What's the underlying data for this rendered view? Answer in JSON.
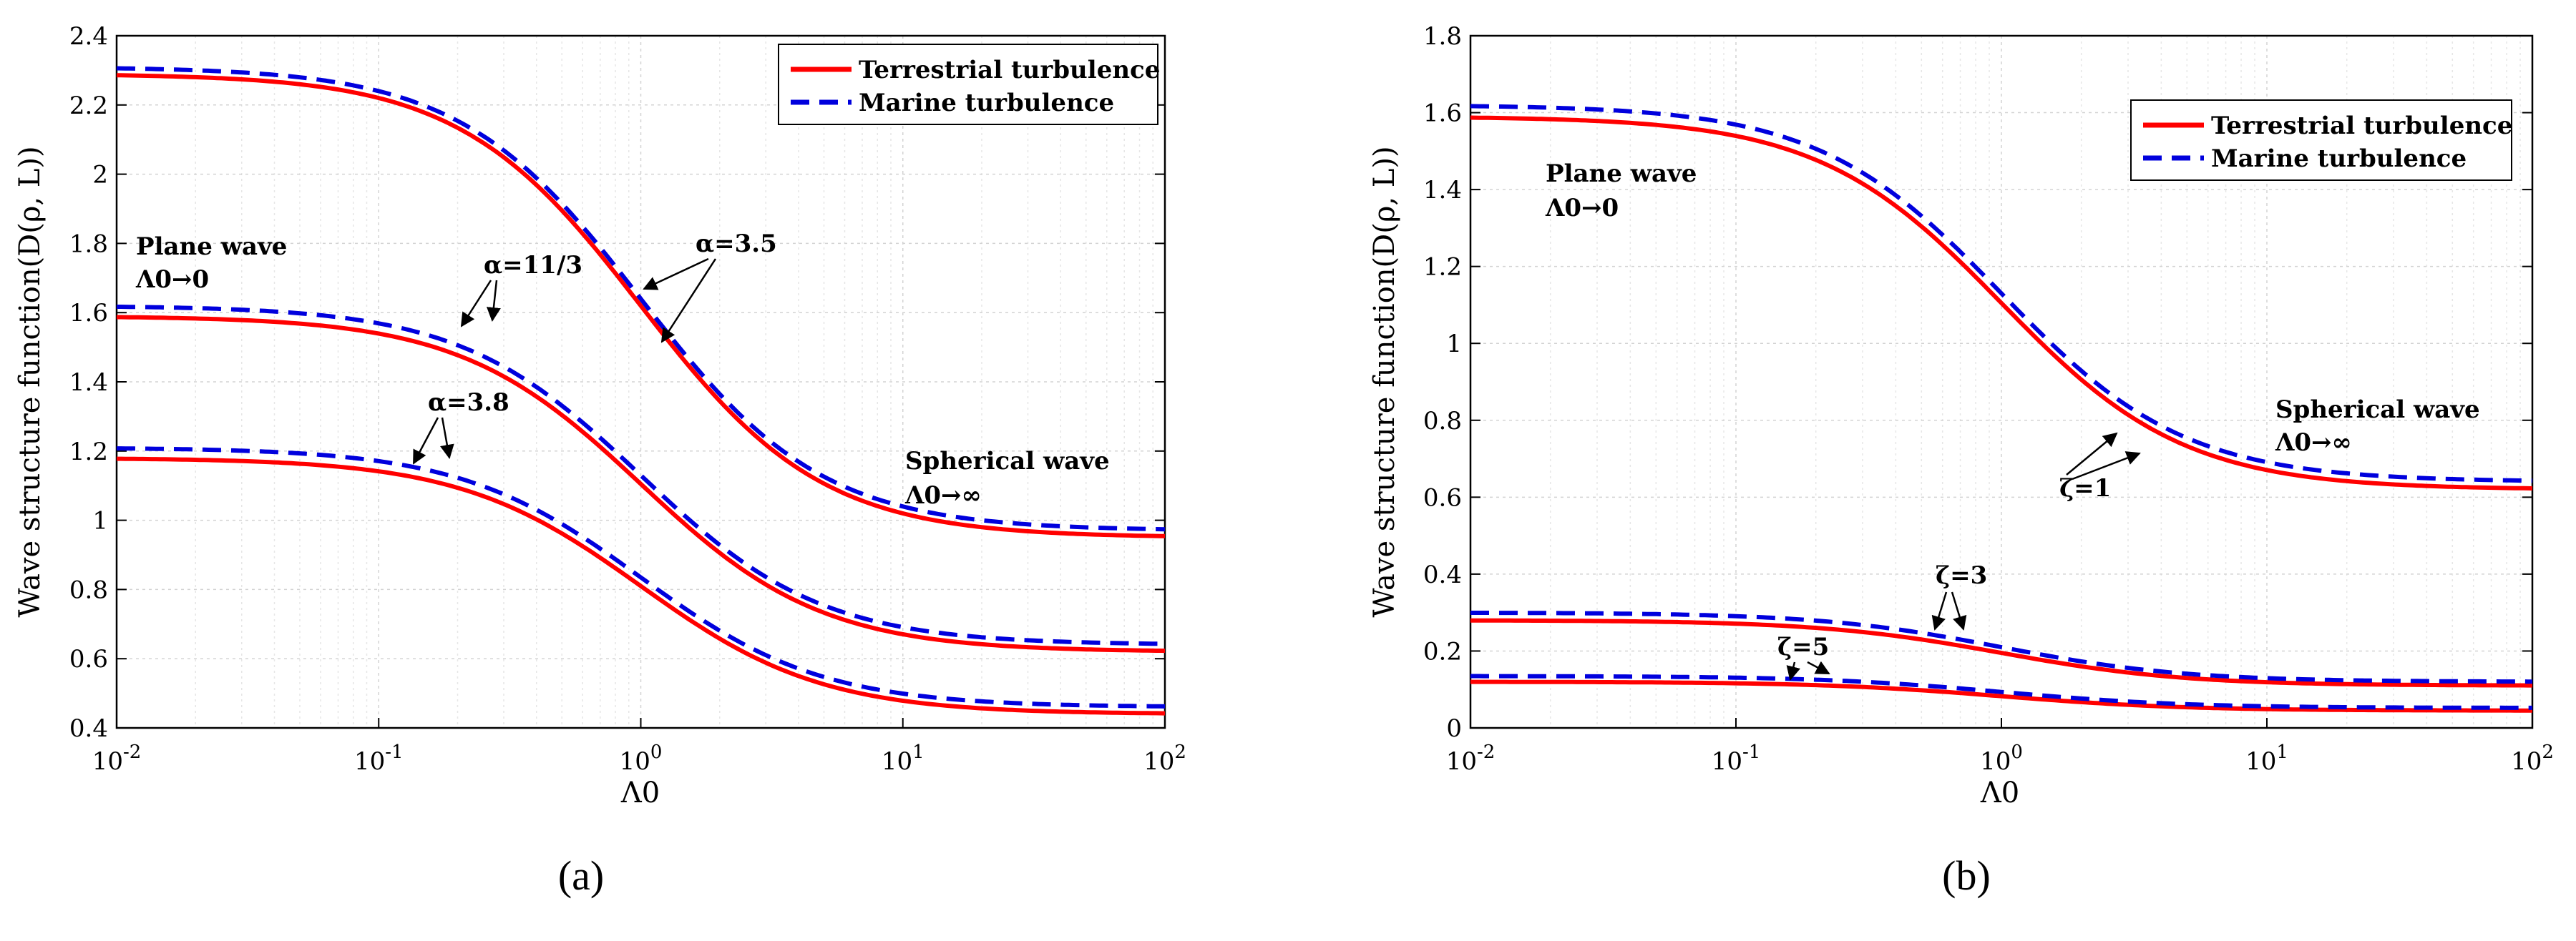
{
  "figure": {
    "series_legend": [
      "Terrestrial turbulence",
      "Marine turbulence"
    ],
    "series_colors": {
      "terrestrial": "#ff0000",
      "marine": "#0000dd"
    }
  },
  "chart_data": [
    {
      "type": "line",
      "panel_label": "(a)",
      "title": "",
      "xlabel": "Λ0",
      "ylabel": "Wave structure function(D(ρ, L))",
      "xscale": "log",
      "xlim": [
        0.01,
        100
      ],
      "ylim": [
        0.4,
        2.4
      ],
      "xticks": [
        0.01,
        0.1,
        1,
        10,
        100
      ],
      "xtick_labels": [
        "10^-2",
        "10^-1",
        "10^0",
        "10^1",
        "10^2"
      ],
      "yticks": [
        0.4,
        0.6,
        0.8,
        1.0,
        1.2,
        1.4,
        1.6,
        1.8,
        2.0,
        2.2,
        2.4
      ],
      "ytick_labels": [
        "0.4",
        "0.6",
        "0.8",
        "1",
        "1.2",
        "1.4",
        "1.6",
        "1.8",
        "2",
        "2.2",
        "2.4"
      ],
      "grid": true,
      "legend_position": "top-right",
      "series": [
        {
          "name": "Terrestrial turbulence",
          "group": "α=3.5",
          "style": "solid",
          "color": "#ff0000",
          "top": 2.29,
          "bottom": 0.95
        },
        {
          "name": "Marine turbulence",
          "group": "α=3.5",
          "style": "dashed",
          "color": "#0000dd",
          "top": 2.31,
          "bottom": 0.97
        },
        {
          "name": "Terrestrial turbulence",
          "group": "α=11/3",
          "style": "solid",
          "color": "#ff0000",
          "top": 1.59,
          "bottom": 0.62
        },
        {
          "name": "Marine turbulence",
          "group": "α=11/3",
          "style": "dashed",
          "color": "#0000dd",
          "top": 1.62,
          "bottom": 0.64
        },
        {
          "name": "Terrestrial turbulence",
          "group": "α=3.8",
          "style": "solid",
          "color": "#ff0000",
          "top": 1.18,
          "bottom": 0.44
        },
        {
          "name": "Marine turbulence",
          "group": "α=3.8",
          "style": "dashed",
          "color": "#0000dd",
          "top": 1.21,
          "bottom": 0.46
        }
      ],
      "annotations": {
        "plane_line1": "Plane wave",
        "plane_line2": "Λ0→0",
        "spherical_line1": "Spherical wave",
        "spherical_line2": "Λ0→∞",
        "group1": "α=3.5",
        "group2": "α=11/3",
        "group3": "α=3.8"
      }
    },
    {
      "type": "line",
      "panel_label": "(b)",
      "title": "",
      "xlabel": "Λ0",
      "ylabel": "Wave structure function(D(ρ, L))",
      "xscale": "log",
      "xlim": [
        0.01,
        100
      ],
      "ylim": [
        0,
        1.8
      ],
      "xticks": [
        0.01,
        0.1,
        1,
        10,
        100
      ],
      "xtick_labels": [
        "10^-2",
        "10^-1",
        "10^0",
        "10^1",
        "10^2"
      ],
      "yticks": [
        0,
        0.2,
        0.4,
        0.6,
        0.8,
        1.0,
        1.2,
        1.4,
        1.6,
        1.8
      ],
      "ytick_labels": [
        "0",
        "0.2",
        "0.4",
        "0.6",
        "0.8",
        "1",
        "1.2",
        "1.4",
        "1.6",
        "1.8"
      ],
      "grid": true,
      "legend_position": "top-right",
      "series": [
        {
          "name": "Terrestrial turbulence",
          "group": "ζ=1",
          "style": "solid",
          "color": "#ff0000",
          "top": 1.59,
          "bottom": 0.62
        },
        {
          "name": "Marine turbulence",
          "group": "ζ=1",
          "style": "dashed",
          "color": "#0000dd",
          "top": 1.62,
          "bottom": 0.64
        },
        {
          "name": "Terrestrial turbulence",
          "group": "ζ=3",
          "style": "solid",
          "color": "#ff0000",
          "top": 0.28,
          "bottom": 0.11
        },
        {
          "name": "Marine turbulence",
          "group": "ζ=3",
          "style": "dashed",
          "color": "#0000dd",
          "top": 0.3,
          "bottom": 0.12
        },
        {
          "name": "Terrestrial turbulence",
          "group": "ζ=5",
          "style": "solid",
          "color": "#ff0000",
          "top": 0.12,
          "bottom": 0.045
        },
        {
          "name": "Marine turbulence",
          "group": "ζ=5",
          "style": "dashed",
          "color": "#0000dd",
          "top": 0.135,
          "bottom": 0.052
        }
      ],
      "annotations": {
        "plane_line1": "Plane wave",
        "plane_line2": "Λ0→0",
        "spherical_line1": "Spherical wave",
        "spherical_line2": "Λ0→∞",
        "group1": "ζ=1",
        "group2": "ζ=3",
        "group3": "ζ=5"
      }
    }
  ]
}
